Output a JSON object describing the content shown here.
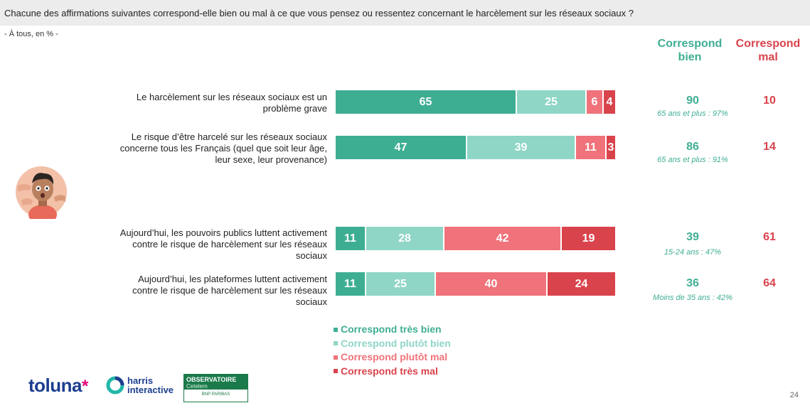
{
  "header": {
    "question": "Chacune des affirmations suivantes correspond-elle bien ou mal à ce que vous pensez ou ressentez concernant le harcèlement sur les réseaux sociaux ?",
    "base": "- À tous, en % -"
  },
  "columns": {
    "bien": [
      "Correspond",
      "bien"
    ],
    "mal": [
      "Correspond",
      "mal"
    ]
  },
  "colors": {
    "tres_bien": "#3eae93",
    "plutot_bien": "#8fd6c6",
    "plutot_mal": "#f0727a",
    "tres_mal": "#d9434c"
  },
  "chart_data": {
    "type": "bar",
    "stacked": true,
    "orientation": "horizontal",
    "categories": [
      "Le harcèlement sur les réseaux sociaux est un problème grave",
      "Le risque d’être harcelé sur les réseaux sociaux concerne tous les Français (quel que soit leur âge, leur sexe, leur provenance)",
      "Aujourd’hui, les pouvoirs publics luttent activement contre le risque de harcèlement sur les réseaux sociaux",
      "Aujourd’hui, les plateformes luttent activement contre le risque de harcèlement sur les réseaux sociaux"
    ],
    "series": [
      {
        "name": "Correspond très bien",
        "values": [
          65,
          47,
          11,
          11
        ]
      },
      {
        "name": "Correspond plutôt bien",
        "values": [
          25,
          39,
          28,
          25
        ]
      },
      {
        "name": "Correspond plutôt mal",
        "values": [
          6,
          11,
          42,
          40
        ]
      },
      {
        "name": "Correspond très mal",
        "values": [
          4,
          3,
          19,
          24
        ]
      }
    ],
    "totals_bien": [
      "90",
      "86",
      "39",
      "36"
    ],
    "totals_mal": [
      "10",
      "14",
      "61",
      "64"
    ],
    "notes": [
      "65 ans et plus : 97%",
      "65 ans et plus : 91%",
      "15-24 ans : 47%",
      "Moins de 35 ans : 42%"
    ],
    "xlim": [
      0,
      100
    ],
    "legend_position": "bottom"
  },
  "logos": {
    "toluna": "toluna",
    "toluna_star": "*",
    "harris_line1": "harris",
    "harris_line2": "interactive",
    "obs_line1": "OBSERVATOIRE",
    "obs_line2": "Cetelem",
    "obs_bottom": "BNP PARIBAS"
  },
  "page_number": "24"
}
